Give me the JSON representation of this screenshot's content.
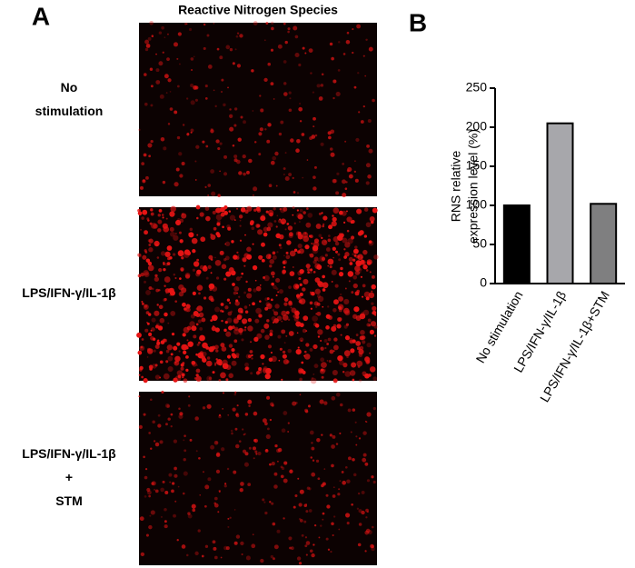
{
  "panel_a": {
    "label": "A",
    "title": "Reactive Nitrogen Species",
    "rows": [
      [
        "No",
        "stimulation"
      ],
      [
        "LPS/IFN-γ/IL-1β"
      ],
      [
        "LPS/IFN-γ/IL-1β",
        "+",
        "STM"
      ]
    ]
  },
  "chart_data": {
    "type": "bar",
    "label": "B",
    "y_label": [
      "RNS relative",
      "expression level (%)"
    ],
    "categories": [
      "No stimulation",
      "LPS/IFN-γ/IL-1β",
      "LPS/IFN-γ/IL-1β+STM"
    ],
    "values": [
      100,
      205,
      102
    ],
    "colors": [
      "#000000",
      "#a7a7ab",
      "#7f7f80"
    ],
    "ylim": [
      0,
      250
    ],
    "yticks": [
      0,
      50,
      100,
      150,
      200,
      250
    ]
  }
}
